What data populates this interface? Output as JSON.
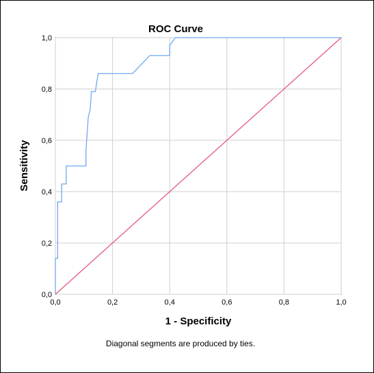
{
  "chart_data": {
    "type": "line",
    "title": "ROC Curve",
    "xlabel": "1 - Specificity",
    "ylabel": "Sensitivity",
    "footnote": "Diagonal segments are produced by ties.",
    "xlim": [
      0,
      1
    ],
    "ylim": [
      0,
      1
    ],
    "xticks": [
      "0,0",
      "0,2",
      "0,4",
      "0,6",
      "0,8",
      "1,0"
    ],
    "yticks": [
      "0,0",
      "0,2",
      "0,4",
      "0,6",
      "0,8",
      "1,0"
    ],
    "grid": true,
    "legend": "none",
    "series": [
      {
        "color": "#6fa8f0",
        "x": [
          0.0,
          0.0,
          0.008,
          0.008,
          0.022,
          0.022,
          0.03,
          0.03,
          0.038,
          0.038,
          0.107,
          0.107,
          0.112,
          0.115,
          0.122,
          0.126,
          0.13,
          0.14,
          0.145,
          0.15,
          0.27,
          0.33,
          0.4,
          0.4,
          0.42,
          0.43,
          0.55,
          0.7,
          0.85,
          1.0
        ],
        "y": [
          0.0,
          0.14,
          0.14,
          0.36,
          0.36,
          0.43,
          0.43,
          0.43,
          0.43,
          0.5,
          0.5,
          0.56,
          0.64,
          0.69,
          0.72,
          0.79,
          0.79,
          0.79,
          0.83,
          0.86,
          0.86,
          0.93,
          0.93,
          0.97,
          1.0,
          1.0,
          1.0,
          1.0,
          1.0,
          1.0
        ]
      },
      {
        "color": "#e5587a",
        "x": [
          0,
          1
        ],
        "y": [
          0,
          1
        ]
      }
    ]
  }
}
